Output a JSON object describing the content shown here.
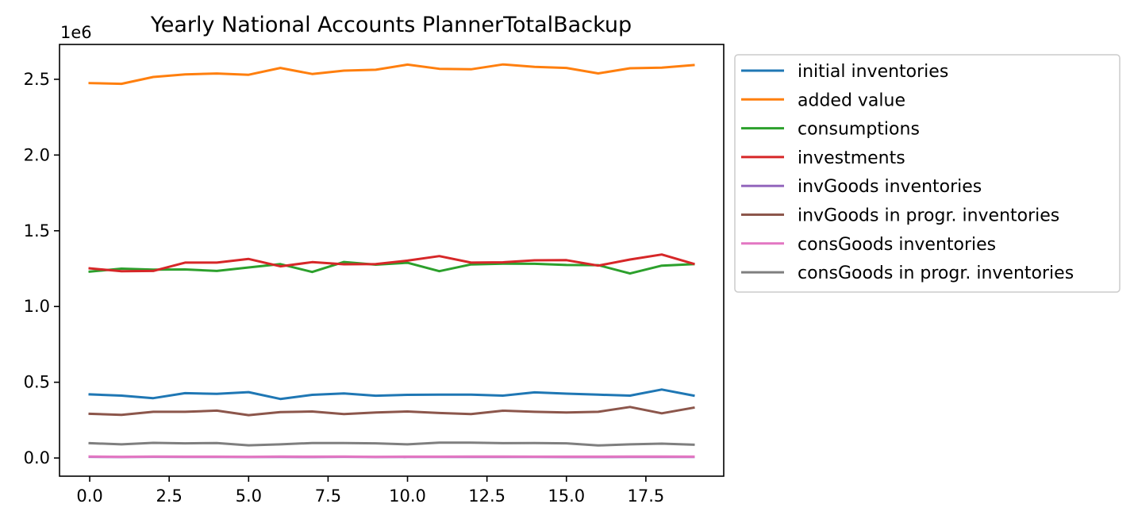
{
  "chart_data": {
    "type": "line",
    "title": "Yearly National Accounts PlannerTotalBackup",
    "xlabel": "",
    "ylabel": "",
    "y_offset_label": "1e6",
    "xlim": [
      -0.95,
      19.95
    ],
    "ylim": [
      -120000,
      2730000
    ],
    "x_ticks": [
      0.0,
      2.5,
      5.0,
      7.5,
      10.0,
      12.5,
      15.0,
      17.5
    ],
    "x_tick_labels": [
      "0.0",
      "2.5",
      "5.0",
      "7.5",
      "10.0",
      "12.5",
      "15.0",
      "17.5"
    ],
    "y_ticks": [
      0.0,
      0.5,
      1.0,
      1.5,
      2.0,
      2.5
    ],
    "y_tick_labels": [
      "0.0",
      "0.5",
      "1.0",
      "1.5",
      "2.0",
      "2.5"
    ],
    "grid": false,
    "legend_position": "outside-right-top",
    "x": [
      0,
      1,
      2,
      3,
      4,
      5,
      6,
      7,
      8,
      9,
      10,
      11,
      12,
      13,
      14,
      15,
      16,
      17,
      18,
      19
    ],
    "series": [
      {
        "name": "initial inventories",
        "color": "#1f77b4",
        "values": [
          420000,
          412000,
          395000,
          428000,
          424000,
          435000,
          390000,
          417000,
          426000,
          411000,
          417000,
          418000,
          418000,
          412000,
          433000,
          425000,
          418000,
          412000,
          452000,
          412000
        ]
      },
      {
        "name": "added value",
        "color": "#ff7f0e",
        "values": [
          2475000,
          2470000,
          2515000,
          2532000,
          2538000,
          2530000,
          2575000,
          2535000,
          2557000,
          2563000,
          2597000,
          2569000,
          2566000,
          2598000,
          2582000,
          2575000,
          2539000,
          2573000,
          2577000,
          2594000
        ]
      },
      {
        "name": "consumptions",
        "color": "#2ca02c",
        "values": [
          1230000,
          1250000,
          1243000,
          1245000,
          1235000,
          1258000,
          1280000,
          1228000,
          1294000,
          1276000,
          1289000,
          1233000,
          1278000,
          1283000,
          1282000,
          1274000,
          1273000,
          1218000,
          1270000,
          1280000
        ]
      },
      {
        "name": "investments",
        "color": "#d62728",
        "values": [
          1252000,
          1233000,
          1235000,
          1290000,
          1290000,
          1314000,
          1265000,
          1293000,
          1279000,
          1280000,
          1303000,
          1333000,
          1290000,
          1292000,
          1305000,
          1306000,
          1270000,
          1310000,
          1343000,
          1282000
        ]
      },
      {
        "name": "invGoods inventories",
        "color": "#9467bd",
        "values": [
          8000,
          6000,
          8000,
          7000,
          7000,
          6000,
          7000,
          6000,
          8000,
          6000,
          7000,
          7000,
          7000,
          7000,
          7000,
          6000,
          6000,
          7000,
          7000,
          7000
        ]
      },
      {
        "name": "invGoods in progr. inventories",
        "color": "#8c564b",
        "values": [
          292000,
          285000,
          305000,
          305000,
          313000,
          283000,
          303000,
          307000,
          290000,
          300000,
          307000,
          297000,
          290000,
          312000,
          305000,
          300000,
          305000,
          337000,
          295000,
          332000
        ]
      },
      {
        "name": "consGoods inventories",
        "color": "#e377c2",
        "values": [
          10000,
          8000,
          10000,
          9000,
          9000,
          8000,
          10000,
          9000,
          10000,
          8000,
          9000,
          9000,
          10000,
          10000,
          9000,
          9000,
          9000,
          10000,
          10000,
          9000
        ]
      },
      {
        "name": "consGoods in progr. inventories",
        "color": "#7f7f7f",
        "values": [
          98000,
          90000,
          100000,
          97000,
          99000,
          84000,
          90000,
          99000,
          99000,
          97000,
          90000,
          101000,
          101000,
          98000,
          99000,
          97000,
          83000,
          90000,
          95000,
          88000
        ]
      }
    ]
  }
}
